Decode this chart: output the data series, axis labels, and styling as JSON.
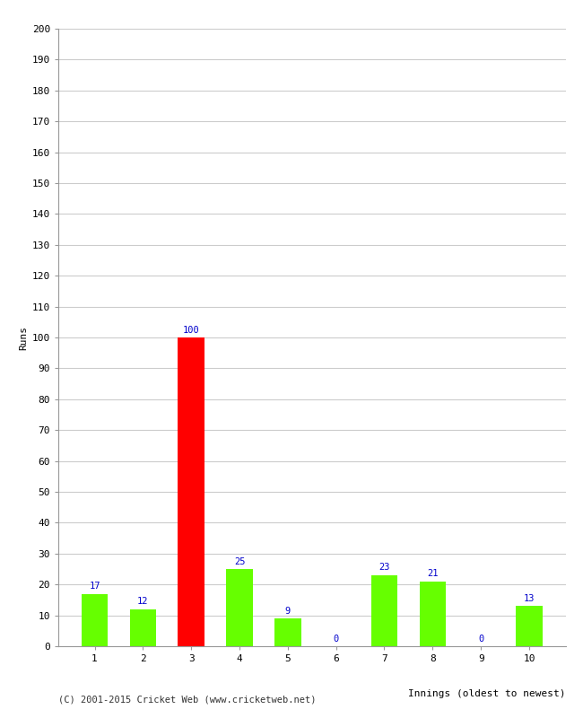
{
  "xlabel": "Innings (oldest to newest)",
  "ylabel": "Runs",
  "categories": [
    "1",
    "2",
    "3",
    "4",
    "5",
    "6",
    "7",
    "8",
    "9",
    "10"
  ],
  "values": [
    17,
    12,
    100,
    25,
    9,
    0,
    23,
    21,
    0,
    13
  ],
  "bar_colors": [
    "#66ff00",
    "#66ff00",
    "#ff0000",
    "#66ff00",
    "#66ff00",
    "#66ff00",
    "#66ff00",
    "#66ff00",
    "#66ff00",
    "#66ff00"
  ],
  "label_color": "#0000cc",
  "ylim": [
    0,
    200
  ],
  "yticks": [
    0,
    10,
    20,
    30,
    40,
    50,
    60,
    70,
    80,
    90,
    100,
    110,
    120,
    130,
    140,
    150,
    160,
    170,
    180,
    190,
    200
  ],
  "background_color": "#ffffff",
  "grid_color": "#cccccc",
  "footer": "(C) 2001-2015 Cricket Web (www.cricketweb.net)",
  "value_fontsize": 7.5,
  "axis_fontsize": 8,
  "ylabel_fontsize": 8,
  "bar_width": 0.55
}
